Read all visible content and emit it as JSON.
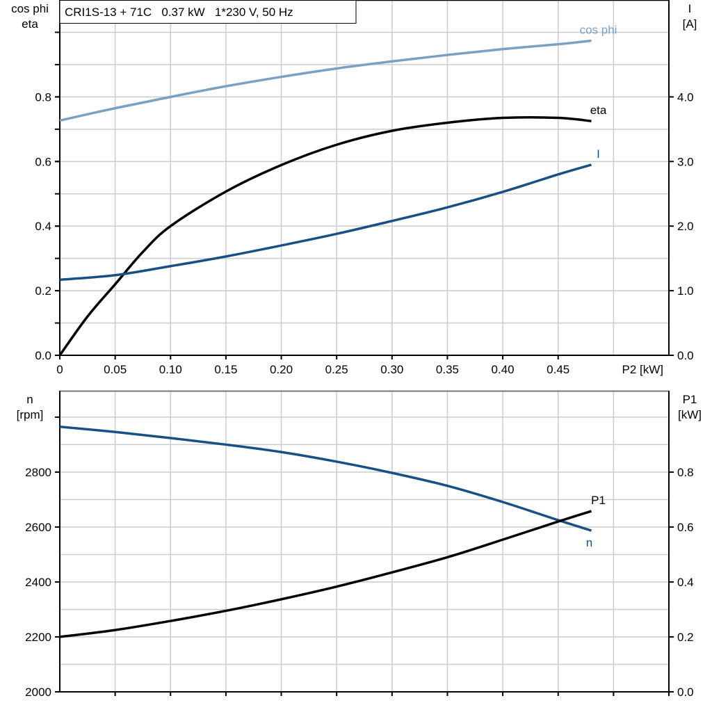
{
  "title": "CRI1S-13 + 71C   0.37 kW   1*230 V, 50 Hz",
  "chart_data": [
    {
      "type": "line",
      "xlabel": "P2 [kW]",
      "x_ticks": [
        "0",
        "0.05",
        "0.10",
        "0.15",
        "0.20",
        "0.25",
        "0.30",
        "0.35",
        "0.40",
        "0.45"
      ],
      "xlim": [
        0,
        0.55
      ],
      "ylabel_left": [
        "cos phi",
        "eta"
      ],
      "ylim_left": [
        0,
        1.1
      ],
      "y_ticks_left": [
        "0.0",
        "0.2",
        "0.4",
        "0.6",
        "0.8"
      ],
      "ylabel_right": [
        "I",
        "[A]"
      ],
      "ylim_right": [
        0,
        5.5
      ],
      "y_ticks_right": [
        "0.0",
        "1.0",
        "2.0",
        "3.0",
        "4.0"
      ],
      "grid": true,
      "series": [
        {
          "name": "cos phi",
          "axis": "left",
          "color": "#7aa0c4",
          "x": [
            0,
            0.05,
            0.1,
            0.15,
            0.2,
            0.25,
            0.3,
            0.35,
            0.4,
            0.45,
            0.48
          ],
          "y": [
            0.727,
            0.765,
            0.8,
            0.833,
            0.862,
            0.888,
            0.91,
            0.93,
            0.948,
            0.963,
            0.974
          ]
        },
        {
          "name": "eta",
          "axis": "left",
          "color": "#000000",
          "x": [
            0,
            0.025,
            0.05,
            0.075,
            0.1,
            0.15,
            0.2,
            0.25,
            0.3,
            0.35,
            0.4,
            0.45,
            0.48
          ],
          "y": [
            0,
            0.12,
            0.22,
            0.32,
            0.4,
            0.507,
            0.589,
            0.652,
            0.695,
            0.72,
            0.735,
            0.735,
            0.725
          ]
        },
        {
          "name": "I",
          "axis": "right",
          "color": "#1a4f86",
          "x": [
            0,
            0.05,
            0.1,
            0.15,
            0.2,
            0.25,
            0.3,
            0.35,
            0.4,
            0.45,
            0.48
          ],
          "y": [
            1.17,
            1.24,
            1.38,
            1.53,
            1.7,
            1.88,
            2.08,
            2.29,
            2.53,
            2.8,
            2.95
          ]
        }
      ]
    },
    {
      "type": "line",
      "xlim": [
        0,
        0.55
      ],
      "ylabel_left": [
        "n",
        "[rpm]"
      ],
      "ylim_left": [
        2000,
        3096
      ],
      "y_ticks_left": [
        "2000",
        "2200",
        "2400",
        "2600",
        "2800"
      ],
      "ylabel_right": [
        "P1",
        "[kW]"
      ],
      "ylim_right": [
        0,
        1.096
      ],
      "y_ticks_right": [
        "0.0",
        "0.2",
        "0.4",
        "0.6",
        "0.8"
      ],
      "grid": true,
      "series": [
        {
          "name": "n",
          "axis": "left",
          "color": "#1a4f86",
          "x": [
            0,
            0.05,
            0.1,
            0.15,
            0.2,
            0.25,
            0.3,
            0.35,
            0.4,
            0.45,
            0.48
          ],
          "y": [
            2965,
            2946,
            2924,
            2900,
            2873,
            2838,
            2797,
            2750,
            2691,
            2625,
            2587
          ]
        },
        {
          "name": "P1",
          "axis": "right",
          "color": "#000000",
          "x": [
            0,
            0.05,
            0.1,
            0.15,
            0.2,
            0.25,
            0.3,
            0.35,
            0.4,
            0.45,
            0.48
          ],
          "y": [
            0.2,
            0.225,
            0.258,
            0.295,
            0.337,
            0.383,
            0.435,
            0.49,
            0.554,
            0.62,
            0.658
          ]
        }
      ]
    }
  ]
}
